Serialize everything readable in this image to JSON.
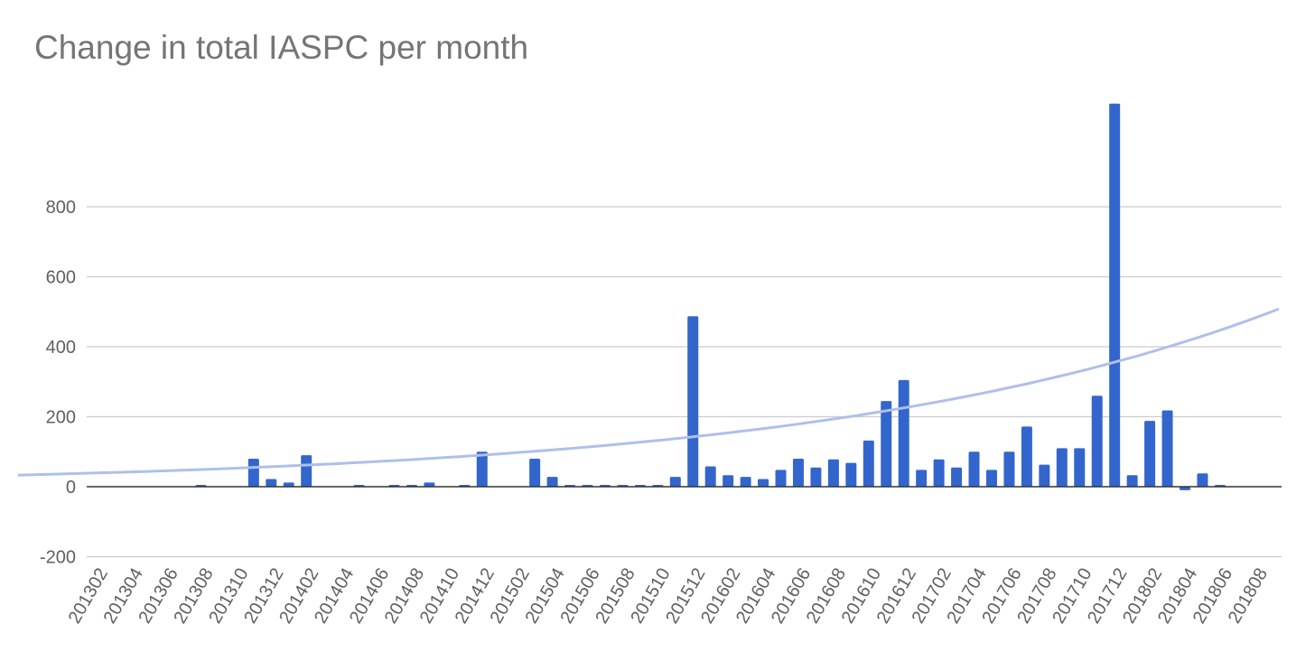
{
  "chart_data": {
    "type": "bar",
    "title": "Change in total IASPC per month",
    "xlabel": "",
    "ylabel": "",
    "ylim": [
      -200,
      1100
    ],
    "yticks": [
      -200,
      0,
      200,
      400,
      600,
      800
    ],
    "grid": true,
    "legend": "none",
    "colors": {
      "bar": "#3366cc",
      "trendline": "#aec0ea",
      "grid": "#cccccc",
      "zero_line": "#333333"
    },
    "categories": [
      "201302",
      "201303",
      "201304",
      "201305",
      "201306",
      "201307",
      "201308",
      "201309",
      "201310",
      "201311",
      "201312",
      "201401",
      "201402",
      "201403",
      "201404",
      "201405",
      "201406",
      "201407",
      "201408",
      "201409",
      "201410",
      "201411",
      "201412",
      "201501",
      "201502",
      "201503",
      "201504",
      "201505",
      "201506",
      "201507",
      "201508",
      "201509",
      "201510",
      "201511",
      "201512",
      "201601",
      "201602",
      "201603",
      "201604",
      "201605",
      "201606",
      "201607",
      "201608",
      "201609",
      "201610",
      "201611",
      "201612",
      "201701",
      "201702",
      "201703",
      "201704",
      "201705",
      "201706",
      "201707",
      "201708",
      "201709",
      "201710",
      "201711",
      "201712",
      "201801",
      "201802",
      "201803",
      "201804",
      "201805",
      "201806",
      "201807",
      "201808",
      "201809"
    ],
    "tick_labels": [
      "201302",
      "201304",
      "201306",
      "201308",
      "201310",
      "201312",
      "201402",
      "201404",
      "201406",
      "201408",
      "201410",
      "201412",
      "201502",
      "201504",
      "201506",
      "201508",
      "201510",
      "201512",
      "201602",
      "201604",
      "201606",
      "201608",
      "201610",
      "201612",
      "201702",
      "201704",
      "201706",
      "201708",
      "201710",
      "201712",
      "201802",
      "201804",
      "201806",
      "201808"
    ],
    "series": [
      {
        "values": [
          0,
          0,
          0,
          0,
          0,
          0,
          5,
          0,
          0,
          80,
          22,
          12,
          90,
          0,
          0,
          5,
          0,
          5,
          3,
          12,
          0,
          3,
          100,
          0,
          0,
          80,
          28,
          3,
          3,
          5,
          3,
          3,
          3,
          28,
          487,
          58,
          33,
          28,
          22,
          48,
          80,
          55,
          78,
          68,
          132,
          245,
          305,
          48,
          78,
          55,
          100,
          48,
          100,
          172,
          63,
          110,
          110,
          260,
          1095,
          33,
          188,
          218,
          -10,
          38,
          5,
          0,
          0,
          0
        ]
      }
    ],
    "trendline": {
      "type": "exponential",
      "start_value": 33,
      "end_value": 508
    }
  }
}
